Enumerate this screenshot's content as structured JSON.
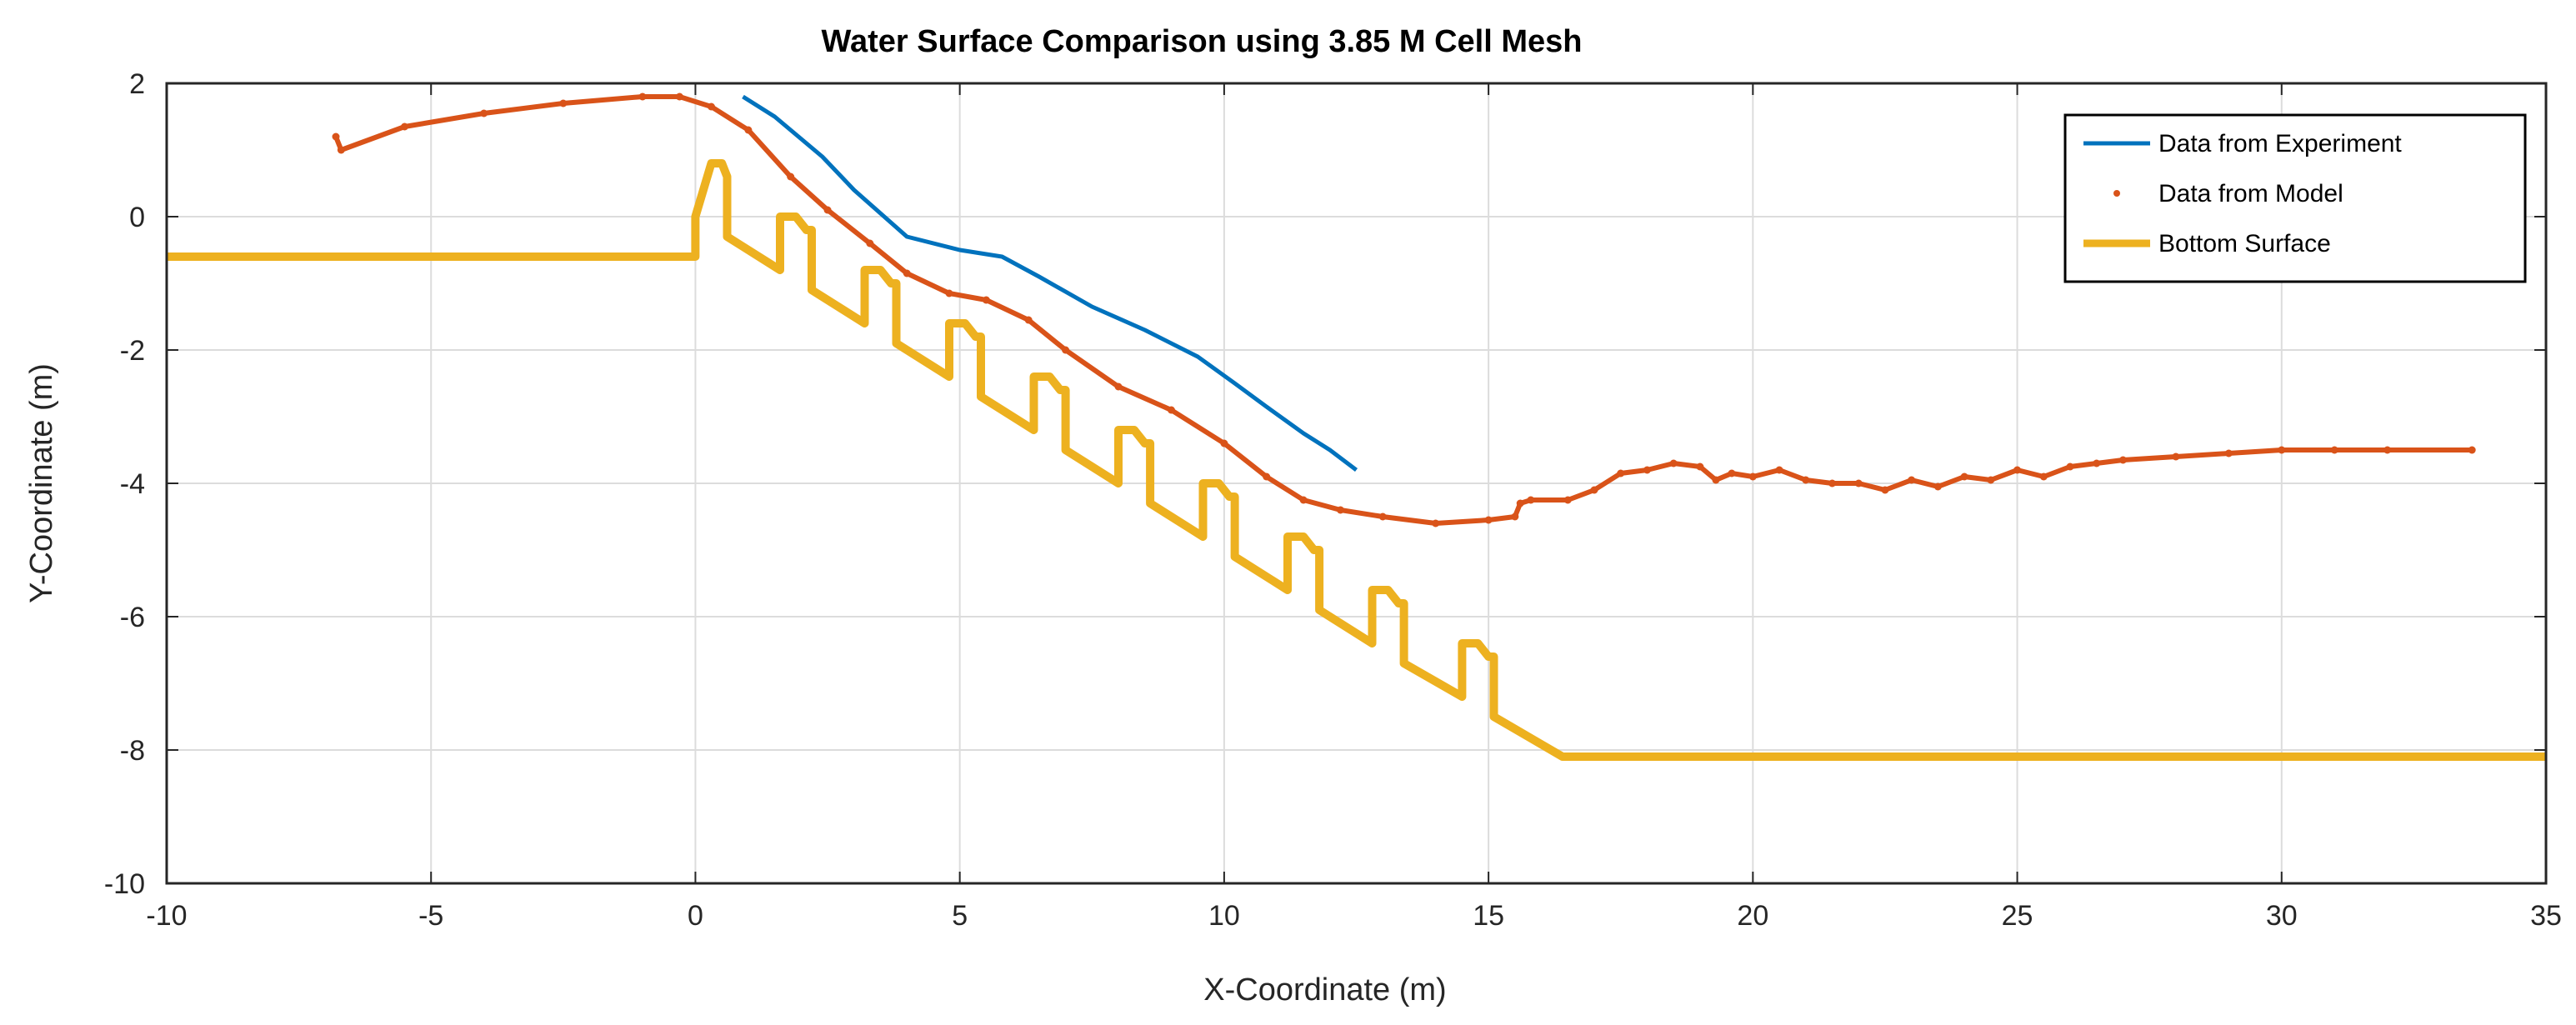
{
  "chart_data": {
    "type": "line",
    "title": "Water Surface Comparison using 3.85 M Cell Mesh",
    "xlabel": "X-Coordinate (m)",
    "ylabel": "Y-Coordinate (m)",
    "xlim": [
      -10,
      35
    ],
    "ylim": [
      -10,
      2
    ],
    "xticks": [
      -10,
      -5,
      0,
      5,
      10,
      15,
      20,
      25,
      30,
      35
    ],
    "yticks": [
      -10,
      -8,
      -6,
      -4,
      -2,
      0,
      2
    ],
    "xtick_labels": [
      "-10",
      "-5",
      "0",
      "5",
      "10",
      "15",
      "20",
      "25",
      "30",
      "35"
    ],
    "ytick_labels": [
      "-10",
      "-8",
      "-6",
      "-4",
      "-2",
      "0",
      "2"
    ],
    "grid": true,
    "legend_position": "top-right",
    "series": [
      {
        "name": "Data from Experiment",
        "style": "line",
        "color": "#0072BD",
        "x": [
          0.9,
          1.5,
          2.4,
          3.0,
          4.0,
          5.0,
          5.8,
          6.5,
          7.5,
          8.5,
          9.5,
          10.2,
          10.8,
          11.5,
          12.0,
          12.5
        ],
        "y": [
          1.8,
          1.5,
          0.9,
          0.4,
          -0.3,
          -0.5,
          -0.6,
          -0.9,
          -1.35,
          -1.7,
          -2.1,
          -2.5,
          -2.85,
          -3.25,
          -3.5,
          -3.8
        ]
      },
      {
        "name": "Data from Model",
        "style": "points",
        "color": "#D95319",
        "x": [
          -6.8,
          -6.7,
          -5.5,
          -4.0,
          -2.5,
          -1.0,
          -0.3,
          0.3,
          1.0,
          1.8,
          2.5,
          3.3,
          4.0,
          4.8,
          5.5,
          6.3,
          7.0,
          8.0,
          9.0,
          10.0,
          10.8,
          11.5,
          12.2,
          13.0,
          14.0,
          15.0,
          15.5,
          15.6,
          15.8,
          16.5,
          17.0,
          17.5,
          18.0,
          18.5,
          19.0,
          19.3,
          19.6,
          20.0,
          20.5,
          21.0,
          21.5,
          22.0,
          22.5,
          23.0,
          23.5,
          24.0,
          24.5,
          25.0,
          25.5,
          26.0,
          26.5,
          27.0,
          28.0,
          29.0,
          30.0,
          31.0,
          32.0,
          33.6
        ],
        "y": [
          1.2,
          1.0,
          1.35,
          1.55,
          1.7,
          1.8,
          1.8,
          1.65,
          1.3,
          0.6,
          0.1,
          -0.4,
          -0.85,
          -1.15,
          -1.25,
          -1.55,
          -2.0,
          -2.55,
          -2.9,
          -3.4,
          -3.9,
          -4.25,
          -4.4,
          -4.5,
          -4.6,
          -4.55,
          -4.5,
          -4.3,
          -4.25,
          -4.25,
          -4.1,
          -3.85,
          -3.8,
          -3.7,
          -3.75,
          -3.95,
          -3.85,
          -3.9,
          -3.8,
          -3.95,
          -4.0,
          -4.0,
          -4.1,
          -3.95,
          -4.05,
          -3.9,
          -3.95,
          -3.8,
          -3.9,
          -3.75,
          -3.7,
          -3.65,
          -3.6,
          -3.55,
          -3.5,
          -3.5,
          -3.5,
          -3.5
        ]
      },
      {
        "name": "Bottom Surface",
        "style": "line",
        "color": "#EDB120",
        "x": [
          -10,
          0,
          0,
          0.3,
          0.5,
          0.6,
          0.6,
          1.6,
          1.6,
          1.9,
          2.1,
          2.2,
          2.2,
          3.2,
          3.2,
          3.5,
          3.7,
          3.8,
          3.8,
          4.8,
          4.8,
          5.1,
          5.3,
          5.4,
          5.4,
          6.4,
          6.4,
          6.7,
          6.9,
          7.0,
          7.0,
          8.0,
          8.0,
          8.3,
          8.5,
          8.6,
          8.6,
          9.6,
          9.6,
          9.9,
          10.1,
          10.2,
          10.2,
          11.2,
          11.2,
          11.5,
          11.7,
          11.8,
          11.8,
          12.8,
          12.8,
          13.1,
          13.3,
          13.4,
          13.4,
          14.5,
          14.5,
          14.8,
          15.0,
          15.1,
          15.1,
          16.4,
          35
        ],
        "y": [
          -0.6,
          -0.6,
          0.0,
          0.8,
          0.8,
          0.6,
          -0.3,
          -0.8,
          0.0,
          0.0,
          -0.2,
          -0.2,
          -1.1,
          -1.6,
          -0.8,
          -0.8,
          -1.0,
          -1.0,
          -1.9,
          -2.4,
          -1.6,
          -1.6,
          -1.8,
          -1.8,
          -2.7,
          -3.2,
          -2.4,
          -2.4,
          -2.6,
          -2.6,
          -3.5,
          -4.0,
          -3.2,
          -3.2,
          -3.4,
          -3.4,
          -4.3,
          -4.8,
          -4.0,
          -4.0,
          -4.2,
          -4.2,
          -5.1,
          -5.6,
          -4.8,
          -4.8,
          -5.0,
          -5.0,
          -5.9,
          -6.4,
          -5.6,
          -5.6,
          -5.8,
          -5.8,
          -6.7,
          -7.2,
          -6.4,
          -6.4,
          -6.6,
          -6.6,
          -7.5,
          -8.1,
          -8.1
        ]
      }
    ]
  }
}
